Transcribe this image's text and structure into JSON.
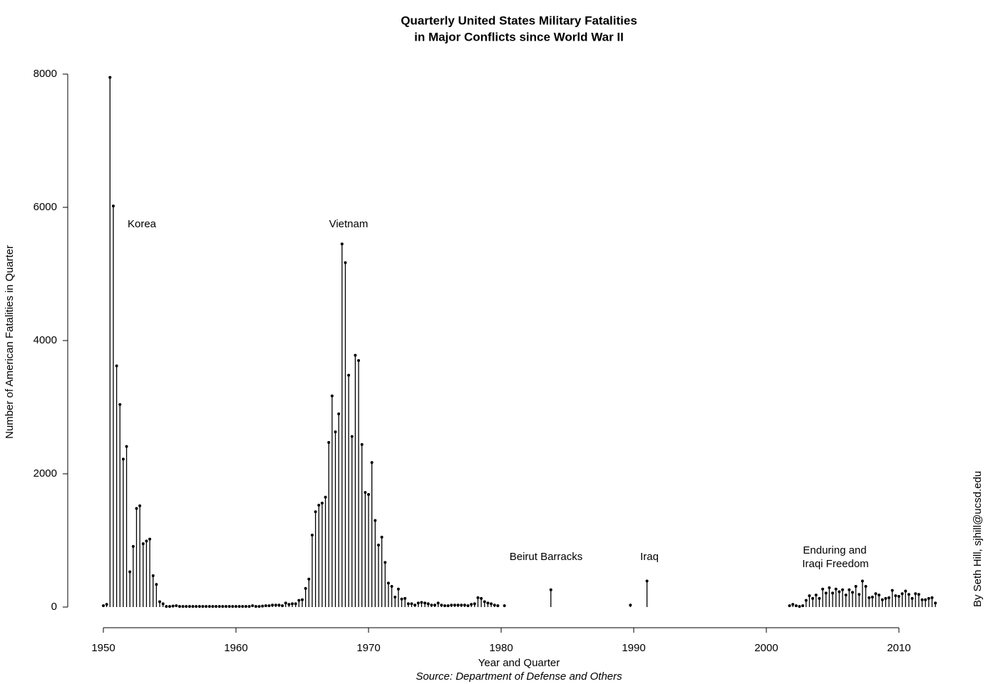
{
  "chart_data": {
    "type": "stem",
    "title": "Quarterly United States Military Fatalities",
    "subtitle": "in Major Conflicts since World War II",
    "x_label": "Year and Quarter",
    "y_label": "Number of American Fatalities in Quarter",
    "source": "Source: Department of Defense and Others",
    "credit": "By Seth Hill, sjhill@ucsd.edu",
    "annotations": [
      "Korea",
      "Vietnam",
      "Beirut Barracks",
      "Iraq",
      "Enduring and",
      "Iraqi Freedom"
    ],
    "color": "#000000",
    "xlim": [
      1950,
      2010
    ],
    "xticks": [
      1950,
      1960,
      1970,
      1980,
      1990,
      2000,
      2010
    ],
    "ylim": [
      0,
      8000
    ],
    "yticks": [
      0,
      2000,
      4000,
      6000,
      8000
    ],
    "x": [
      1950,
      1950.25,
      1950.5,
      1950.75,
      1951,
      1951.25,
      1951.5,
      1951.75,
      1952,
      1952.25,
      1952.5,
      1952.75,
      1953,
      1953.25,
      1953.5,
      1953.75,
      1954,
      1954.25,
      1954.5,
      1954.75,
      1955,
      1955.25,
      1955.5,
      1955.75,
      1956,
      1956.25,
      1956.5,
      1956.75,
      1957,
      1957.25,
      1957.5,
      1957.75,
      1958,
      1958.25,
      1958.5,
      1958.75,
      1959,
      1959.25,
      1959.5,
      1959.75,
      1960,
      1960.25,
      1960.5,
      1960.75,
      1961,
      1961.25,
      1961.5,
      1961.75,
      1962,
      1962.25,
      1962.5,
      1962.75,
      1963,
      1963.25,
      1963.5,
      1963.75,
      1964,
      1964.25,
      1964.5,
      1964.75,
      1965,
      1965.25,
      1965.5,
      1965.75,
      1966,
      1966.25,
      1966.5,
      1966.75,
      1967,
      1967.25,
      1967.5,
      1967.75,
      1968,
      1968.25,
      1968.5,
      1968.75,
      1969,
      1969.25,
      1969.5,
      1969.75,
      1970,
      1970.25,
      1970.5,
      1970.75,
      1971,
      1971.25,
      1971.5,
      1971.75,
      1972,
      1972.25,
      1972.5,
      1972.75,
      1973,
      1973.25,
      1973.5,
      1973.75,
      1974,
      1974.25,
      1974.5,
      1974.75,
      1975,
      1975.25,
      1975.5,
      1975.75,
      1976,
      1976.25,
      1976.5,
      1976.75,
      1977,
      1977.25,
      1977.5,
      1977.75,
      1978,
      1978.25,
      1978.5,
      1978.75,
      1979,
      1979.25,
      1979.5,
      1979.75,
      1980.25,
      1983.75,
      1989.75,
      1991,
      2001.75,
      2002,
      2002.25,
      2002.5,
      2002.75,
      2003,
      2003.25,
      2003.5,
      2003.75,
      2004,
      2004.25,
      2004.5,
      2004.75,
      2005,
      2005.25,
      2005.5,
      2005.75,
      2006,
      2006.25,
      2006.5,
      2006.75,
      2007,
      2007.25,
      2007.5,
      2007.75,
      2008,
      2008.25,
      2008.5,
      2008.75,
      2009,
      2009.25,
      2009.5,
      2009.75,
      2010,
      2010.25,
      2010.5,
      2010.75,
      2011,
      2011.25,
      2011.5,
      2011.75,
      2012,
      2012.25,
      2012.5,
      2012.75
    ],
    "values": [
      20,
      40,
      7950,
      6020,
      3620,
      3040,
      2220,
      2410,
      530,
      910,
      1480,
      1520,
      950,
      990,
      1020,
      470,
      340,
      80,
      50,
      10,
      10,
      15,
      20,
      10,
      10,
      10,
      10,
      10,
      10,
      10,
      10,
      10,
      10,
      10,
      10,
      10,
      10,
      10,
      10,
      10,
      10,
      10,
      10,
      10,
      10,
      20,
      10,
      10,
      15,
      20,
      20,
      30,
      30,
      30,
      20,
      60,
      40,
      50,
      50,
      100,
      110,
      280,
      420,
      1080,
      1430,
      1530,
      1560,
      1650,
      2470,
      3170,
      2630,
      2900,
      5450,
      5170,
      3480,
      2560,
      3780,
      3700,
      2440,
      1720,
      1690,
      2170,
      1300,
      930,
      1050,
      670,
      360,
      310,
      150,
      270,
      120,
      130,
      50,
      50,
      30,
      60,
      70,
      60,
      50,
      30,
      30,
      60,
      30,
      20,
      20,
      30,
      30,
      30,
      30,
      30,
      20,
      40,
      50,
      140,
      130,
      80,
      60,
      50,
      30,
      20,
      20,
      260,
      30,
      390,
      20,
      40,
      20,
      10,
      20,
      100,
      170,
      130,
      180,
      130,
      270,
      210,
      290,
      210,
      270,
      230,
      260,
      180,
      260,
      220,
      310,
      190,
      390,
      310,
      140,
      150,
      200,
      180,
      110,
      130,
      140,
      250,
      170,
      160,
      200,
      240,
      190,
      130,
      200,
      190,
      110,
      110,
      130,
      140,
      60
    ]
  }
}
